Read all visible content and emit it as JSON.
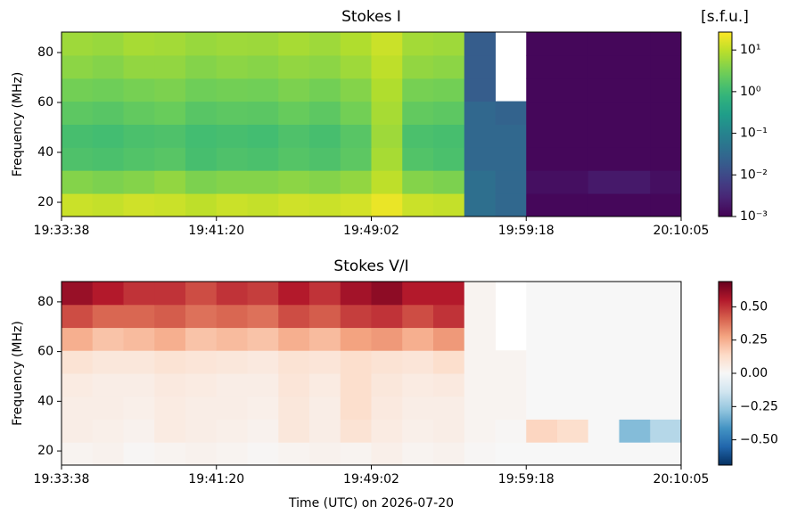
{
  "chart_data": [
    {
      "type": "heatmap",
      "title": "Stokes I",
      "colorbar_label": "[s.f.u.]",
      "ylabel": "Frequency (MHz)",
      "colormap": "viridis",
      "color_scale": "log",
      "clim": [
        0.001,
        27
      ],
      "cticks": [
        {
          "value": 10,
          "label": "10¹"
        },
        {
          "value": 1,
          "label": "10⁰"
        },
        {
          "value": 0.1,
          "label": "10⁻¹"
        },
        {
          "value": 0.01,
          "label": "10⁻²"
        },
        {
          "value": 0.001,
          "label": "10⁻³"
        }
      ],
      "xlim": [
        0,
        20
      ],
      "xticks": [
        {
          "value": 0,
          "label": "19:33:38"
        },
        {
          "value": 5,
          "label": "19:41:20"
        },
        {
          "value": 10,
          "label": "19:49:02"
        },
        {
          "value": 15,
          "label": "19:59:18"
        },
        {
          "value": 20,
          "label": "20:10:05"
        }
      ],
      "ylim": [
        14.3,
        88.2
      ],
      "yticks": [
        20,
        40,
        60,
        80
      ],
      "frequencies": [
        18.9,
        28.2,
        37.4,
        46.6,
        55.9,
        65.1,
        74.3,
        83.6
      ],
      "z": [
        [
          12,
          11,
          13,
          12,
          10,
          12,
          11,
          13,
          12,
          14,
          20,
          12,
          11,
          0.04,
          0.03,
          0.0012,
          0.0012,
          0.0012,
          0.0012,
          0.0012
        ],
        [
          4,
          3.5,
          4,
          5,
          3.5,
          4,
          4,
          4.5,
          4,
          5,
          10,
          4,
          3.5,
          0.04,
          0.03,
          0.0015,
          0.0015,
          0.002,
          0.002,
          0.0015
        ],
        [
          1.5,
          1.4,
          1.6,
          1.8,
          1.3,
          1.5,
          1.4,
          1.7,
          1.5,
          2,
          7,
          1.6,
          1.4,
          0.03,
          0.03,
          0.0012,
          0.0012,
          0.0012,
          0.0012,
          0.0012
        ],
        [
          1.3,
          1.2,
          1.4,
          1.5,
          1.2,
          1.3,
          1.2,
          1.5,
          1.3,
          1.8,
          6,
          1.4,
          1.3,
          0.03,
          0.03,
          0.0012,
          0.0012,
          0.0012,
          0.0012,
          0.0012
        ],
        [
          2,
          1.8,
          2.2,
          2.5,
          1.8,
          2,
          1.9,
          2.4,
          2,
          3,
          7,
          2.2,
          2,
          0.03,
          0.025,
          0.0012,
          0.0012,
          0.0012,
          0.0012,
          0.0012
        ],
        [
          3,
          2.8,
          3.2,
          3.5,
          2.8,
          3,
          2.9,
          3.5,
          3,
          4,
          8,
          3.2,
          3,
          0.02,
          null,
          0.0012,
          0.0012,
          0.0012,
          0.0012,
          0.0012
        ],
        [
          4.5,
          4,
          5,
          5,
          4,
          4.5,
          4.2,
          5,
          4.5,
          6,
          10,
          5,
          4.5,
          0.02,
          null,
          0.0012,
          0.0012,
          0.0012,
          0.0012,
          0.0012
        ],
        [
          6,
          5.5,
          7,
          6.5,
          5.5,
          6,
          5.8,
          7,
          6,
          8,
          12,
          6.5,
          6,
          0.02,
          null,
          0.0012,
          0.0012,
          0.0012,
          0.0012,
          0.0012
        ]
      ]
    },
    {
      "type": "heatmap",
      "title": "Stokes V/I",
      "ylabel": "Frequency (MHz)",
      "xlabel": "Time (UTC) on 2026-07-20",
      "colormap": "RdBu_r",
      "color_scale": "linear",
      "clim": [
        -0.69,
        0.69
      ],
      "cticks": [
        {
          "value": 0.5,
          "label": "0.50"
        },
        {
          "value": 0.25,
          "label": "0.25"
        },
        {
          "value": 0,
          "label": "0.00"
        },
        {
          "value": -0.25,
          "label": "−0.25"
        },
        {
          "value": -0.5,
          "label": "−0.50"
        }
      ],
      "xlim": [
        0,
        20
      ],
      "xticks": [
        {
          "value": 0,
          "label": "19:33:38"
        },
        {
          "value": 5,
          "label": "19:41:20"
        },
        {
          "value": 10,
          "label": "19:49:02"
        },
        {
          "value": 15,
          "label": "19:59:18"
        },
        {
          "value": 20,
          "label": "20:10:05"
        }
      ],
      "ylim": [
        14.3,
        88.2
      ],
      "yticks": [
        20,
        40,
        60,
        80
      ],
      "frequencies": [
        18.9,
        28.2,
        37.4,
        46.6,
        55.9,
        65.1,
        74.3,
        83.6
      ],
      "z": [
        [
          0.02,
          0.03,
          0.01,
          0.02,
          0.03,
          0.02,
          0.01,
          0.02,
          0.03,
          0.02,
          0.04,
          0.02,
          0.03,
          0.01,
          0,
          0,
          0,
          0,
          0,
          0
        ],
        [
          0.05,
          0.04,
          0.03,
          0.06,
          0.05,
          0.04,
          0.03,
          0.08,
          0.05,
          0.1,
          0.06,
          0.04,
          0.05,
          0.02,
          0.01,
          0.15,
          0.12,
          0,
          -0.3,
          -0.2
        ],
        [
          0.05,
          0.05,
          0.04,
          0.06,
          0.05,
          0.05,
          0.04,
          0.08,
          0.05,
          0.12,
          0.07,
          0.05,
          0.05,
          0.02,
          0.02,
          0,
          0,
          0,
          0,
          0
        ],
        [
          0.06,
          0.05,
          0.05,
          0.07,
          0.06,
          0.05,
          0.05,
          0.09,
          0.06,
          0.12,
          0.08,
          0.06,
          0.07,
          0.02,
          0.02,
          0,
          0,
          0,
          0,
          0
        ],
        [
          0.1,
          0.08,
          0.08,
          0.1,
          0.09,
          0.08,
          0.07,
          0.1,
          0.09,
          0.12,
          0.1,
          0.09,
          0.12,
          0.02,
          0.02,
          0,
          0,
          0,
          0,
          0
        ],
        [
          0.25,
          0.2,
          0.22,
          0.25,
          0.2,
          0.22,
          0.2,
          0.25,
          0.22,
          0.28,
          0.3,
          0.25,
          0.3,
          0.02,
          null,
          0,
          0,
          0,
          0,
          0
        ],
        [
          0.45,
          0.4,
          0.4,
          0.42,
          0.38,
          0.4,
          0.38,
          0.45,
          0.42,
          0.48,
          0.5,
          0.45,
          0.5,
          0.02,
          null,
          0,
          0,
          0,
          0,
          0
        ],
        [
          0.6,
          0.55,
          0.5,
          0.5,
          0.45,
          0.5,
          0.48,
          0.55,
          0.5,
          0.58,
          0.62,
          0.55,
          0.55,
          0.02,
          null,
          0,
          0,
          0,
          0,
          0
        ]
      ]
    }
  ]
}
